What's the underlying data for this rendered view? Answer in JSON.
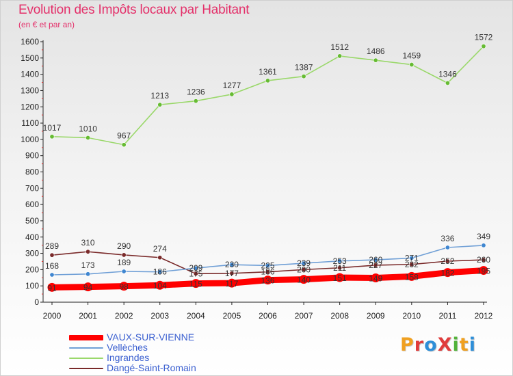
{
  "header": {
    "title": "Evolution des Impôts locaux par Habitant",
    "subtitle": "(en € et par an)"
  },
  "brand": {
    "text": "ProXiti"
  },
  "chart_data": {
    "type": "line",
    "title": "Evolution des Impôts locaux par Habitant",
    "subtitle": "(en € et par an)",
    "xlabel": "",
    "ylabel": "",
    "ylim": [
      0,
      1600
    ],
    "ystep": 100,
    "grid": false,
    "legend_position": "bottom-left",
    "x": [
      "2000",
      "2001",
      "2002",
      "2003",
      "2004",
      "2005",
      "2006",
      "2007",
      "2008",
      "2009",
      "2010",
      "2011",
      "2012"
    ],
    "y_ticks": [
      "0",
      "100",
      "200",
      "300",
      "400",
      "500",
      "600",
      "700",
      "800",
      "900",
      "1000",
      "1100",
      "1200",
      "1300",
      "1400",
      "1500",
      "1600"
    ],
    "series": [
      {
        "name": "Ingrandes",
        "color": "#9ad86a",
        "marker": "#66bb33",
        "values": [
          1017,
          1010,
          967,
          1213,
          1236,
          1277,
          1361,
          1387,
          1512,
          1486,
          1459,
          1346,
          1572
        ],
        "labels": [
          "1017",
          "1010",
          "967",
          "1213",
          "1236",
          "1277",
          "1361",
          "1387",
          "1512",
          "1486",
          "1459",
          "1346",
          "1572"
        ]
      },
      {
        "name": "Dangé-Saint-Romain",
        "color": "#7a2a2a",
        "marker": "#7a2a2a",
        "values": [
          289,
          310,
          290,
          274,
          175,
          177,
          186,
          200,
          211,
          227,
          232,
          252,
          260
        ],
        "labels": [
          "289",
          "310",
          "290",
          "274",
          "175",
          "177",
          "186",
          "200",
          "211",
          "227",
          "232",
          "252",
          "260"
        ]
      },
      {
        "name": "Vellèches",
        "color": "#6f9fd6",
        "marker": "#3f86d0",
        "values": [
          168,
          173,
          189,
          186,
          209,
          230,
          225,
          239,
          253,
          260,
          271,
          336,
          349
        ],
        "labels": [
          "168",
          "173",
          "189",
          "186",
          "209",
          "230",
          "225",
          "239",
          "253",
          "260",
          "271",
          "336",
          "349"
        ]
      },
      {
        "name": "VAUX-SUR-VIENNE",
        "color": "#ff0000",
        "marker": "#ff0000",
        "values": [
          91,
          94,
          98,
          104,
          115,
          117,
          136,
          140,
          151,
          149,
          158,
          182,
          195
        ],
        "labels": [
          "91",
          "94",
          "98",
          "104",
          "115",
          "117",
          "136",
          "140",
          "151",
          "149",
          "158",
          "182",
          "195"
        ]
      }
    ],
    "legend_order": [
      "VAUX-SUR-VIENNE",
      "Vellèches",
      "Ingrandes",
      "Dangé-Saint-Romain"
    ]
  }
}
